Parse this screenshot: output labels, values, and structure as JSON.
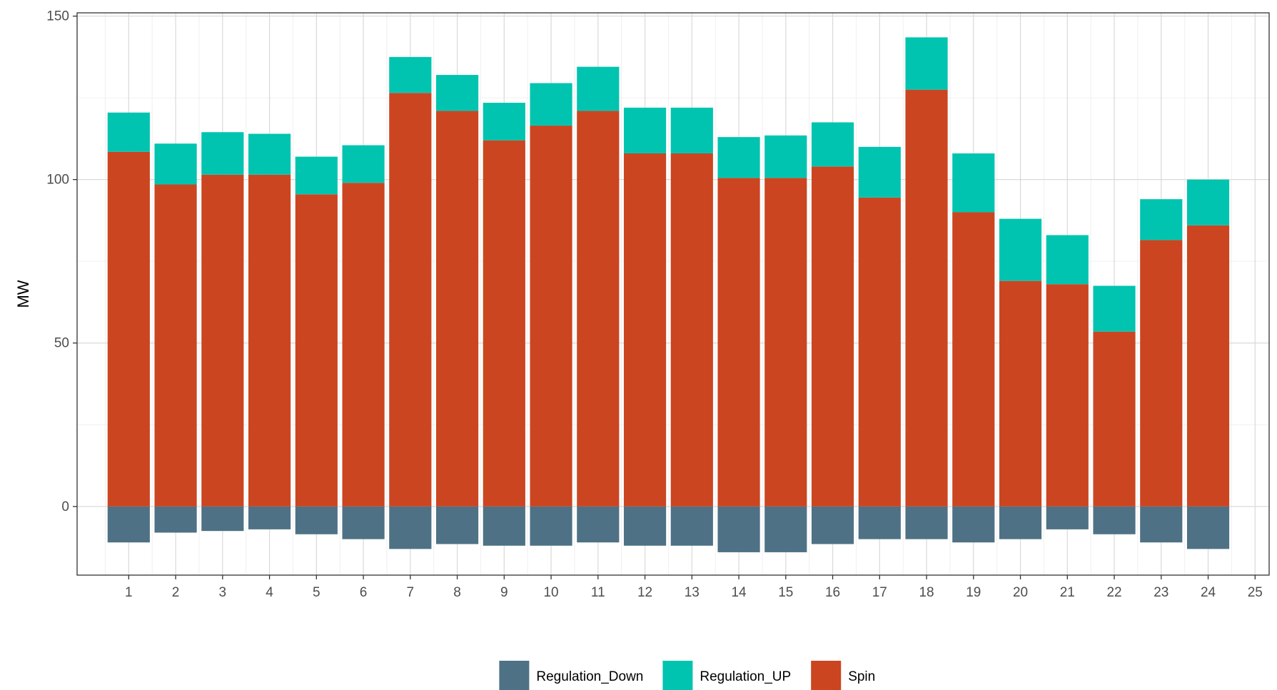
{
  "chart_data": {
    "type": "bar",
    "stacked": true,
    "title": "",
    "xlabel": "",
    "ylabel": "MW",
    "ylim": [
      -21,
      151
    ],
    "xlim": [
      -0.1,
      25.3
    ],
    "x_ticks": [
      1,
      2,
      3,
      4,
      5,
      6,
      7,
      8,
      9,
      10,
      11,
      12,
      13,
      14,
      15,
      16,
      17,
      18,
      19,
      20,
      21,
      22,
      23,
      24,
      25
    ],
    "y_ticks": [
      0,
      50,
      100,
      150
    ],
    "grid": true,
    "legend_position": "bottom",
    "categories": [
      1,
      2,
      3,
      4,
      5,
      6,
      7,
      8,
      9,
      10,
      11,
      12,
      13,
      14,
      15,
      16,
      17,
      18,
      19,
      20,
      21,
      22,
      23,
      24
    ],
    "series": [
      {
        "name": "Regulation_Down",
        "color": "#4e7185",
        "values": [
          -11,
          -8,
          -7.5,
          -7,
          -8.5,
          -10,
          -13,
          -11.5,
          -12,
          -12,
          -11,
          -12,
          -12,
          -14,
          -14,
          -11.5,
          -10,
          -10,
          -11,
          -10,
          -7,
          -8.5,
          -11,
          -13
        ]
      },
      {
        "name": "Regulation_UP",
        "color": "#00c4b0",
        "values": [
          12,
          12.5,
          13,
          12.5,
          11.5,
          11.5,
          11,
          11,
          11.5,
          13,
          13.5,
          14,
          14,
          12.5,
          13,
          13.5,
          15.5,
          16,
          18,
          19,
          15,
          14,
          12.5,
          14
        ]
      },
      {
        "name": "Spin",
        "color": "#cb4521",
        "values": [
          108.5,
          98.5,
          101.5,
          101.5,
          95.5,
          99,
          126.5,
          121,
          112,
          116.5,
          121,
          108,
          108,
          100.5,
          100.5,
          104,
          94.5,
          127.5,
          90,
          69,
          68,
          53.5,
          81.5,
          86
        ]
      }
    ],
    "legend": [
      "Regulation_Down",
      "Regulation_UP",
      "Spin"
    ]
  },
  "style": {
    "panel_border": "#333333",
    "grid_major": "#d9d9d9",
    "grid_minor": "#f0f0f0",
    "axis_text": "#4d4d4d"
  }
}
